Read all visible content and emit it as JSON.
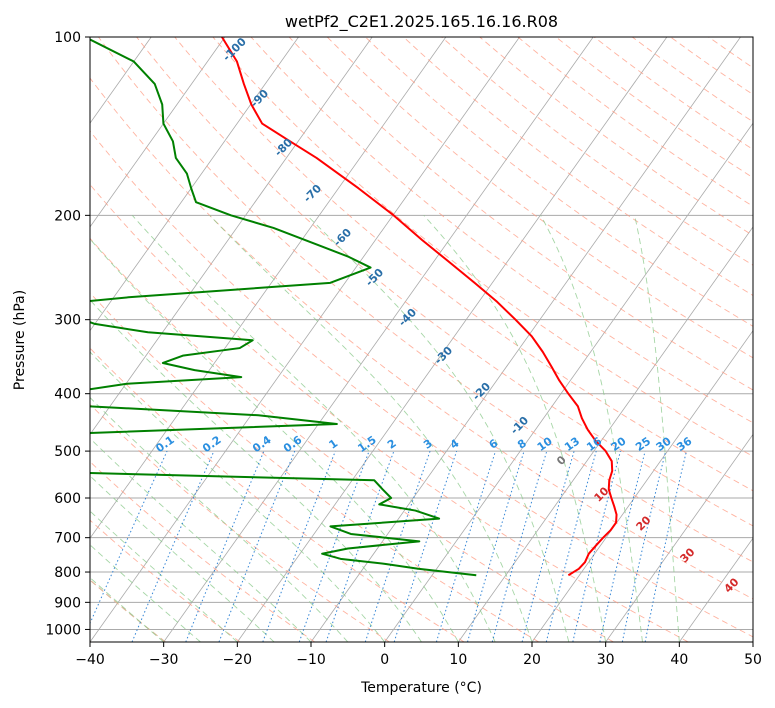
{
  "chart_data": {
    "type": "line",
    "title": "wetPf2_C2E1.2025.165.16.16.R08",
    "xlabel": "Temperature (°C)",
    "ylabel": "Pressure (hPa)",
    "xlim": [
      -40,
      50
    ],
    "ylim": [
      1050,
      100
    ],
    "y_scale": "log",
    "x_ticks": [
      "−40",
      "−30",
      "−20",
      "−10",
      "0",
      "10",
      "20",
      "30",
      "40",
      "50"
    ],
    "y_ticks": [
      "100",
      "200",
      "300",
      "400",
      "500",
      "600",
      "700",
      "800",
      "900",
      "1000"
    ],
    "grid": true,
    "skew_t": true,
    "series": [
      {
        "role": "temperature",
        "color": "#ff0000",
        "p": [
          810,
          790,
          770,
          745,
          720,
          700,
          680,
          660,
          640,
          620,
          600,
          580,
          560,
          540,
          520,
          500,
          480,
          460,
          440,
          420,
          400,
          380,
          360,
          340,
          320,
          300,
          280,
          260,
          240,
          220,
          200,
          180,
          160,
          150,
          140,
          130,
          120,
          110,
          100
        ],
        "t": [
          18.5,
          19.3,
          19.5,
          19.2,
          19.4,
          19.6,
          19.9,
          19.9,
          19.2,
          18.1,
          16.9,
          15.7,
          14.9,
          14.4,
          13.4,
          11.6,
          9.2,
          7.1,
          5.2,
          3.5,
          1.0,
          -1.5,
          -3.9,
          -6.5,
          -9.5,
          -13.3,
          -17.5,
          -22.4,
          -27.8,
          -33.7,
          -39.9,
          -47.3,
          -55.9,
          -61.1,
          -66.6,
          -69.9,
          -72.9,
          -76.0,
          -80.4
        ]
      },
      {
        "role": "dewpoint",
        "color": "#008000",
        "p": [
          810,
          790,
          775,
          760,
          745,
          730,
          710,
          690,
          670,
          650,
          630,
          615,
          600,
          580,
          560,
          540,
          500,
          470,
          450,
          435,
          420,
          400,
          385,
          375,
          365,
          355,
          345,
          335,
          325,
          315,
          305,
          300,
          295,
          285,
          275,
          260,
          245,
          235,
          225,
          210,
          200,
          190,
          180,
          170,
          160,
          150,
          140,
          130,
          120,
          110,
          100
        ],
        "t": [
          6.0,
          -2.5,
          -7.5,
          -14.0,
          -17.0,
          -14.0,
          -5.0,
          -15.0,
          -18.5,
          -4.5,
          -8.5,
          -14.0,
          -13.0,
          -15.0,
          -17.0,
          -68.0,
          -68.0,
          -68.0,
          -27.5,
          -39.0,
          -63.0,
          -68.0,
          -60.0,
          -45.0,
          -52.0,
          -57.0,
          -55.0,
          -48.0,
          -47.0,
          -62.0,
          -70.0,
          -72.0,
          -76.0,
          -80.0,
          -68.0,
          -42.0,
          -38.0,
          -42.0,
          -47.0,
          -55.0,
          -62.0,
          -68.0,
          -70.0,
          -72.0,
          -75.0,
          -77.0,
          -80.0,
          -82.0,
          -85.0,
          -90.0,
          -99.0
        ]
      }
    ],
    "dry_adiabat_labels": [
      "-100",
      "-90",
      "-80",
      "-70",
      "-60",
      "-50",
      "-40",
      "-30",
      "-20",
      "-10"
    ],
    "moist_adiabat_labels": [
      "0",
      "10",
      "20",
      "30",
      "40"
    ],
    "mixing_ratio_labels": [
      "0.1",
      "0.2",
      "0.4",
      "0.6",
      "1",
      "1.5",
      "2",
      "3",
      "4",
      "6",
      "8",
      "10",
      "13",
      "16",
      "20",
      "25",
      "30",
      "36"
    ],
    "colors": {
      "temperature": "#ff0000",
      "dewpoint": "#008000",
      "isotherm": "#aaaaaa",
      "dry_adiabat": "#ff9980",
      "moist_adiabat": "#88c888",
      "mixing_ratio": "#1e78d0",
      "dry_label": "#2a6fa8",
      "moist_label": "#d42a2a",
      "mixing_label": "#2a8fe0",
      "base_adiabat": "#d8b898"
    }
  }
}
